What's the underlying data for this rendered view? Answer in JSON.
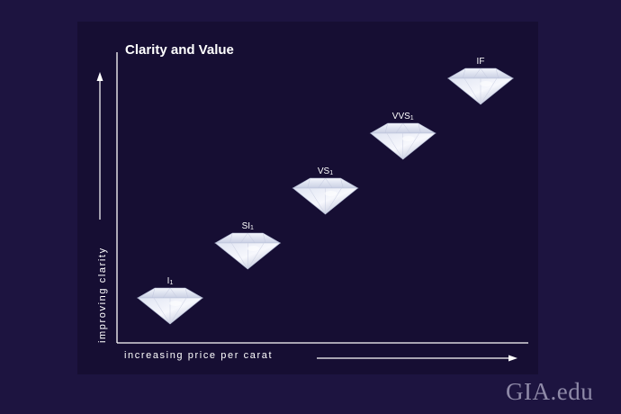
{
  "chart_data": {
    "type": "scatter",
    "title": "Clarity and Value",
    "xlabel": "increasing price per carat",
    "ylabel": "improving clarity",
    "points": [
      {
        "label": "I1",
        "x": 1,
        "y": 1
      },
      {
        "label": "SI1",
        "x": 2,
        "y": 2
      },
      {
        "label": "VS1",
        "x": 3,
        "y": 3
      },
      {
        "label": "VVS1",
        "x": 4,
        "y": 4
      },
      {
        "label": "IF",
        "x": 5,
        "y": 5
      }
    ],
    "marker": "diamond-gem",
    "grid": false,
    "colors": {
      "background": "#1d1440",
      "panel": "#160e33",
      "axis": "#ffffff",
      "gem": "#e3e8f5"
    }
  },
  "watermark": "GIA.edu"
}
